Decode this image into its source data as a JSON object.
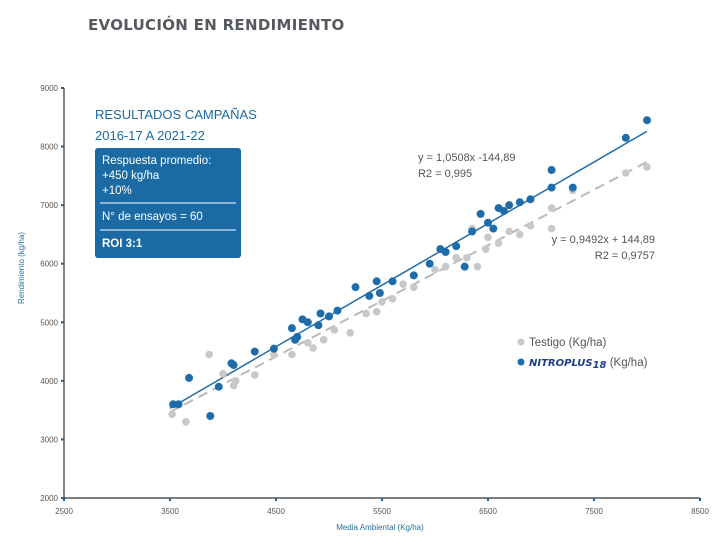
{
  "chart_data": {
    "type": "scatter",
    "title": "EVOLUCIÓN EN RENDIMIENTO",
    "xlabel": "Media Ambiental (Kg/ha)",
    "ylabel": "Rendimiento (kg/ha)",
    "xlim": [
      2500,
      8500
    ],
    "ylim": [
      2000,
      9000
    ],
    "xticks": [
      "2500",
      "3500",
      "4500",
      "5500",
      "6500",
      "7500",
      "8500"
    ],
    "yticks": [
      "2000",
      "3000",
      "4000",
      "5000",
      "6000",
      "7000",
      "8000",
      "9000"
    ],
    "results_box": {
      "title_line1": "RESULTADOS CAMPAÑAS",
      "title_line2": "2016-17 A 2021-22",
      "line1": "Respuesta promedio:",
      "line2": "+450 kg/ha",
      "line3": "+10%",
      "line4": "N° de ensayos = 60",
      "line5": "ROI 3:1",
      "color": "#1b6aa3"
    },
    "series": [
      {
        "name": "Testigo (Kg/ha)",
        "color": "#c8c8c8",
        "trendline": {
          "slope": 0.9492,
          "intercept": 144.89,
          "equation": "y = 0,9492x + 144,89",
          "r2": "R2 = 0,9757"
        },
        "points": [
          [
            3520,
            3430
          ],
          [
            3650,
            3300
          ],
          [
            3870,
            4450
          ],
          [
            4000,
            4120
          ],
          [
            4100,
            3920
          ],
          [
            4120,
            4000
          ],
          [
            4300,
            4100
          ],
          [
            4480,
            4450
          ],
          [
            4650,
            4450
          ],
          [
            4800,
            4650
          ],
          [
            4850,
            4560
          ],
          [
            4950,
            4700
          ],
          [
            5050,
            4870
          ],
          [
            5200,
            4820
          ],
          [
            5350,
            5150
          ],
          [
            5450,
            5180
          ],
          [
            5500,
            5350
          ],
          [
            5600,
            5400
          ],
          [
            5700,
            5650
          ],
          [
            5800,
            5600
          ],
          [
            6000,
            5900
          ],
          [
            6100,
            5950
          ],
          [
            6200,
            6100
          ],
          [
            6300,
            6100
          ],
          [
            6350,
            6600
          ],
          [
            6400,
            5950
          ],
          [
            6480,
            6250
          ],
          [
            6500,
            6450
          ],
          [
            6600,
            6350
          ],
          [
            6700,
            6550
          ],
          [
            6800,
            6500
          ],
          [
            6900,
            6650
          ],
          [
            7100,
            6600
          ],
          [
            7100,
            6950
          ],
          [
            7300,
            7250
          ],
          [
            7800,
            7550
          ],
          [
            8000,
            7650
          ]
        ]
      },
      {
        "name": "NITROPLUS18 (Kg/ha)",
        "legend_brand": "NITROPLUS",
        "legend_sub": "18",
        "legend_suffix": " (Kg/ha)",
        "color": "#1f6cab",
        "trendline": {
          "slope": 1.0508,
          "intercept": -144.89,
          "equation": "y = 1,0508x -144,89",
          "r2": "R2 = 0,995"
        },
        "points": [
          [
            3530,
            3600
          ],
          [
            3580,
            3600
          ],
          [
            3680,
            4050
          ],
          [
            3880,
            3400
          ],
          [
            3960,
            3900
          ],
          [
            4080,
            4300
          ],
          [
            4100,
            4270
          ],
          [
            4300,
            4500
          ],
          [
            4480,
            4550
          ],
          [
            4650,
            4900
          ],
          [
            4680,
            4700
          ],
          [
            4700,
            4750
          ],
          [
            4750,
            5050
          ],
          [
            4800,
            5000
          ],
          [
            4900,
            4950
          ],
          [
            4920,
            5150
          ],
          [
            5000,
            5100
          ],
          [
            5080,
            5200
          ],
          [
            5250,
            5600
          ],
          [
            5380,
            5450
          ],
          [
            5450,
            5700
          ],
          [
            5480,
            5500
          ],
          [
            5600,
            5700
          ],
          [
            5800,
            5800
          ],
          [
            5950,
            6000
          ],
          [
            6050,
            6250
          ],
          [
            6100,
            6200
          ],
          [
            6200,
            6300
          ],
          [
            6280,
            5950
          ],
          [
            6350,
            6550
          ],
          [
            6430,
            6850
          ],
          [
            6500,
            6700
          ],
          [
            6550,
            6600
          ],
          [
            6600,
            6950
          ],
          [
            6650,
            6900
          ],
          [
            6700,
            7000
          ],
          [
            6800,
            7050
          ],
          [
            6900,
            7100
          ],
          [
            7100,
            7600
          ],
          [
            7100,
            7300
          ],
          [
            7300,
            7300
          ],
          [
            7800,
            8150
          ],
          [
            8000,
            8450
          ]
        ]
      }
    ]
  }
}
